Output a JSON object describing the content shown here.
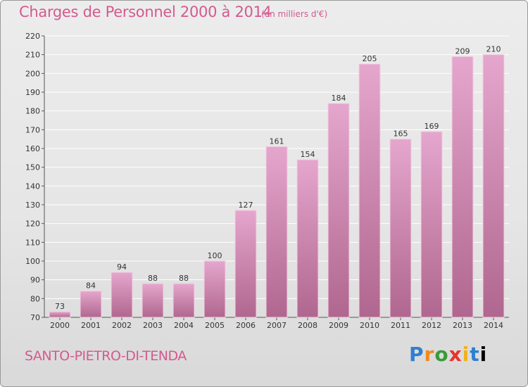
{
  "header": {
    "title": "Charges de Personnel 2000 à 2014",
    "subtitle": "(en milliers d'€)"
  },
  "footer": {
    "commune": "SANTO-PIETRO-DI-TENDA",
    "logo_letters": [
      "P",
      "r",
      "o",
      "x",
      "i",
      "t",
      "i"
    ]
  },
  "colors": {
    "title": "#d45a8f",
    "bar_top": "#e5a6cd",
    "bar_bottom": "#b0678f",
    "grid": "#ffffff"
  },
  "chart_data": {
    "type": "bar",
    "title": "Charges de Personnel 2000 à 2014",
    "subtitle": "(en milliers d'€)",
    "categories": [
      "2000",
      "2001",
      "2002",
      "2003",
      "2004",
      "2005",
      "2006",
      "2007",
      "2008",
      "2009",
      "2010",
      "2011",
      "2012",
      "2013",
      "2014"
    ],
    "values": [
      73,
      84,
      94,
      88,
      88,
      100,
      127,
      161,
      154,
      184,
      205,
      165,
      169,
      209,
      210
    ],
    "ylim": [
      70,
      220
    ],
    "yticks": [
      70,
      80,
      90,
      100,
      110,
      120,
      130,
      140,
      150,
      160,
      170,
      180,
      190,
      200,
      210,
      220
    ],
    "grid": true,
    "legend": "none"
  }
}
